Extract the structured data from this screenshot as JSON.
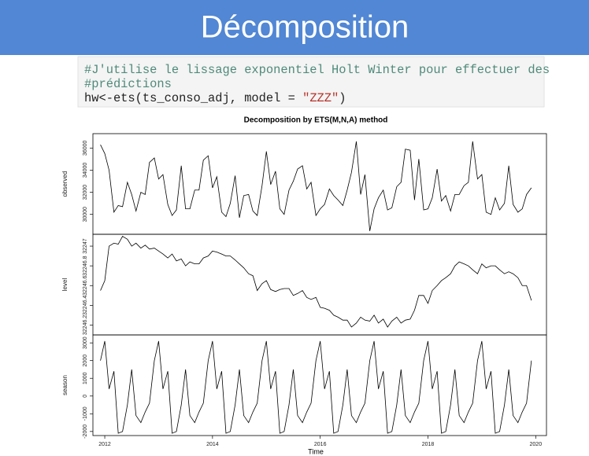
{
  "header": {
    "title": "Décomposition"
  },
  "code": {
    "lines": [
      [
        {
          "text": "#J'utilise le lissage exponentiel Holt Winter pour effectuer des",
          "color": "#4f8a7a"
        }
      ],
      [
        {
          "text": "#prédictions",
          "color": "#4f8a7a"
        }
      ],
      [
        {
          "text": "hw<-ets(ts_conso_adj, model = ",
          "color": "#222222"
        },
        {
          "text": "\"ZZZ\"",
          "color": "#b5332a"
        },
        {
          "text": ")",
          "color": "#222222"
        }
      ]
    ]
  },
  "chart_data": {
    "type": "line",
    "title": "Decomposition by ETS(M,N,A) method",
    "xlabel": "Time",
    "xlim": [
      2011.78,
      2020.2
    ],
    "xticks": [
      2012,
      2014,
      2016,
      2018,
      2020
    ],
    "color": "#000000",
    "x": [
      2011.92,
      2012.0,
      2012.08,
      2012.17,
      2012.25,
      2012.33,
      2012.42,
      2012.5,
      2012.58,
      2012.67,
      2012.75,
      2012.83,
      2012.92,
      2013.0,
      2013.08,
      2013.17,
      2013.25,
      2013.33,
      2013.42,
      2013.5,
      2013.58,
      2013.67,
      2013.75,
      2013.83,
      2013.92,
      2014.0,
      2014.08,
      2014.17,
      2014.25,
      2014.33,
      2014.42,
      2014.5,
      2014.58,
      2014.67,
      2014.75,
      2014.83,
      2014.92,
      2015.0,
      2015.08,
      2015.17,
      2015.25,
      2015.33,
      2015.42,
      2015.5,
      2015.58,
      2015.67,
      2015.75,
      2015.83,
      2015.92,
      2016.0,
      2016.08,
      2016.17,
      2016.25,
      2016.33,
      2016.42,
      2016.5,
      2016.58,
      2016.67,
      2016.75,
      2016.83,
      2016.92,
      2017.0,
      2017.08,
      2017.17,
      2017.25,
      2017.33,
      2017.42,
      2017.5,
      2017.58,
      2017.67,
      2017.75,
      2017.83,
      2017.92,
      2018.0,
      2018.08,
      2018.17,
      2018.25,
      2018.33,
      2018.42,
      2018.5,
      2018.58,
      2018.67,
      2018.75,
      2018.83,
      2018.92,
      2019.0,
      2019.08,
      2019.17,
      2019.25,
      2019.33,
      2019.42,
      2019.5,
      2019.58,
      2019.67,
      2019.75,
      2019.83,
      2019.92
    ],
    "series": [
      {
        "name": "observed",
        "ylim": [
          28200,
          37300
        ],
        "yticks": [
          30000,
          32000,
          34000,
          36000
        ],
        "values": [
          36300,
          35500,
          34000,
          30200,
          30800,
          30700,
          32900,
          31800,
          30300,
          32000,
          31800,
          34700,
          35100,
          33200,
          33600,
          30900,
          29900,
          30400,
          34400,
          30500,
          30500,
          32200,
          32200,
          34900,
          35300,
          32400,
          33400,
          30200,
          29800,
          31000,
          33500,
          29700,
          31700,
          31800,
          30300,
          29900,
          32600,
          35700,
          32700,
          33900,
          30500,
          30000,
          32200,
          33000,
          34100,
          34400,
          32300,
          32900,
          29900,
          30500,
          30900,
          32300,
          31700,
          31300,
          30800,
          32200,
          33800,
          36600,
          31800,
          33600,
          28500,
          30500,
          31500,
          32200,
          30400,
          30600,
          32500,
          32900,
          35900,
          35800,
          31300,
          35000,
          30400,
          30500,
          31500,
          34100,
          31200,
          31700,
          30300,
          31800,
          31800,
          32600,
          32900,
          36600,
          33200,
          33600,
          30200,
          30000,
          31500,
          30400,
          31000,
          34400,
          30900,
          30200,
          30500,
          31800,
          32400
        ]
      },
      {
        "name": "level",
        "ylim": [
          32246.1,
          32247.12
        ],
        "yticks": [
          32246.2,
          32246.4,
          32246.6,
          32246.8,
          32247.0
        ],
        "values": [
          32246.55,
          32246.65,
          32247.0,
          32247.03,
          32247.02,
          32247.1,
          32247.07,
          32247.0,
          32247.03,
          32246.98,
          32247.01,
          32246.97,
          32246.98,
          32246.95,
          32246.92,
          32246.88,
          32246.92,
          32246.85,
          32246.87,
          32246.8,
          32246.84,
          32246.82,
          32246.82,
          32246.88,
          32246.9,
          32246.95,
          32246.94,
          32246.92,
          32246.9,
          32246.9,
          32246.86,
          32246.82,
          32246.78,
          32246.72,
          32246.7,
          32246.55,
          32246.62,
          32246.65,
          32246.56,
          32246.54,
          32246.56,
          32246.57,
          32246.57,
          32246.5,
          32246.52,
          32246.55,
          32246.48,
          32246.46,
          32246.48,
          32246.38,
          32246.37,
          32246.35,
          32246.3,
          32246.28,
          32246.25,
          32246.25,
          32246.18,
          32246.22,
          32246.28,
          32246.25,
          32246.24,
          32246.3,
          32246.22,
          32246.26,
          32246.18,
          32246.24,
          32246.28,
          32246.22,
          32246.25,
          32246.26,
          32246.35,
          32246.5,
          32246.5,
          32246.42,
          32246.55,
          32246.6,
          32246.65,
          32246.68,
          32246.72,
          32246.8,
          32246.84,
          32246.82,
          32246.8,
          32246.76,
          32246.72,
          32246.82,
          32246.78,
          32246.8,
          32246.8,
          32246.76,
          32246.72,
          32246.74,
          32246.72,
          32246.68,
          32246.6,
          32246.6,
          32246.45
        ]
      },
      {
        "name": "season",
        "ylim": [
          -2230,
          3450
        ],
        "yticks": [
          -2000,
          -1000,
          0,
          1000,
          2000,
          3000
        ],
        "values": [
          2000,
          3100,
          400,
          1400,
          -2100,
          -2000,
          -500,
          1500,
          -1100,
          -1500,
          -900,
          -400,
          2000,
          3100,
          400,
          1400,
          -2100,
          -2000,
          -500,
          1500,
          -1100,
          -1500,
          -900,
          -400,
          2000,
          3100,
          400,
          1400,
          -2100,
          -2000,
          -500,
          1500,
          -1100,
          -1500,
          -900,
          -400,
          2000,
          3100,
          400,
          1400,
          -2100,
          -2000,
          -500,
          1500,
          -1100,
          -1500,
          -900,
          -400,
          2000,
          3100,
          400,
          1400,
          -2100,
          -2000,
          -500,
          1500,
          -1100,
          -1500,
          -900,
          -400,
          2000,
          3100,
          400,
          1400,
          -2100,
          -2000,
          -500,
          1500,
          -1100,
          -1500,
          -900,
          -400,
          2000,
          3100,
          400,
          1400,
          -2100,
          -2000,
          -500,
          1500,
          -1100,
          -1500,
          -900,
          -400,
          2000,
          3100,
          400,
          1400,
          -2100,
          -2000,
          -500,
          1500,
          -1100,
          -1500,
          -900,
          -400,
          2000
        ]
      }
    ]
  }
}
